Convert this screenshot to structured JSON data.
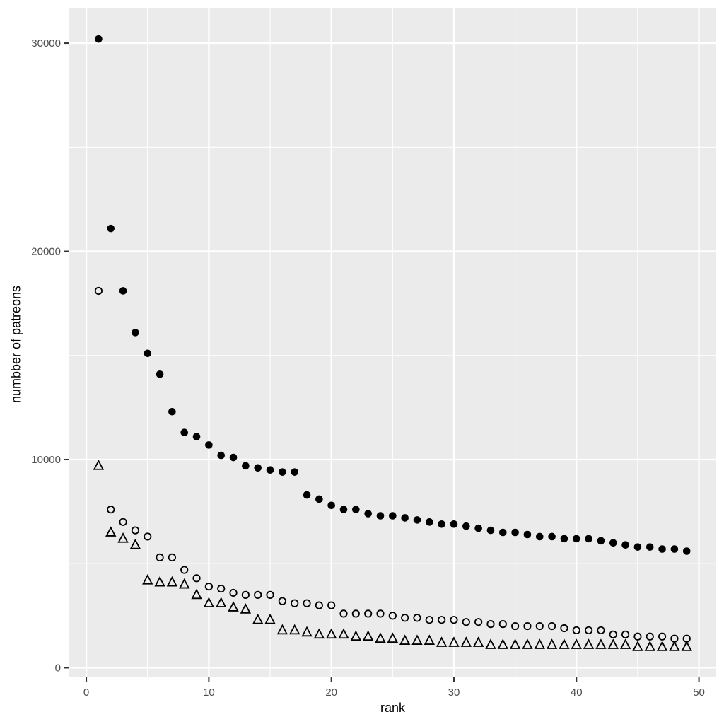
{
  "figure": {
    "background_color": "#ffffff",
    "panel_color": "#ebebeb",
    "grid_color": "#ffffff",
    "axis_tick_color": "#333333",
    "tick_label_color": "#4d4d4d",
    "axis_title_color": "#000000",
    "point_color": "#000000"
  },
  "chart_data": {
    "type": "scatter",
    "title": "",
    "xlabel": "rank",
    "ylabel": "numbber of patreons",
    "legend_position": "none",
    "grid": "white major and minor gridlines on gray panel",
    "xlim": [
      -1.39,
      51.41
    ],
    "ylim": [
      -460,
      31700
    ],
    "x_ticks": {
      "values": [
        0,
        10,
        20,
        30,
        40,
        50
      ],
      "labels": [
        "0",
        "10",
        "20",
        "30",
        "40",
        "50"
      ]
    },
    "x_minor_ticks": [
      5,
      15,
      25,
      35,
      45
    ],
    "y_ticks": {
      "values": [
        0,
        10000,
        20000,
        30000
      ],
      "labels": [
        "0",
        "10000",
        "20000",
        "30000"
      ]
    },
    "y_minor_ticks": [
      5000,
      15000,
      25000
    ],
    "x": [
      1,
      2,
      3,
      4,
      5,
      6,
      7,
      8,
      9,
      10,
      11,
      12,
      13,
      14,
      15,
      16,
      17,
      18,
      19,
      20,
      21,
      22,
      23,
      24,
      25,
      26,
      27,
      28,
      29,
      30,
      31,
      32,
      33,
      34,
      35,
      36,
      37,
      38,
      39,
      40,
      41,
      42,
      43,
      44,
      45,
      46,
      47,
      48,
      49
    ],
    "series": [
      {
        "name": "top-series-filled-circles",
        "marker": "filled-circle",
        "values": [
          30200,
          21100,
          18100,
          16100,
          15100,
          14100,
          12300,
          11300,
          11100,
          10700,
          10200,
          10100,
          9700,
          9600,
          9500,
          9400,
          9400,
          8300,
          8100,
          7800,
          7600,
          7600,
          7400,
          7300,
          7300,
          7200,
          7100,
          7000,
          6900,
          6900,
          6800,
          6700,
          6600,
          6500,
          6500,
          6400,
          6300,
          6300,
          6200,
          6200,
          6200,
          6100,
          6000,
          5900,
          5800,
          5800,
          5700,
          5700,
          5600
        ]
      },
      {
        "name": "middle-series-open-circles",
        "marker": "open-circle",
        "values": [
          18100,
          7600,
          7000,
          6600,
          6300,
          5300,
          5300,
          4700,
          4300,
          3900,
          3800,
          3600,
          3500,
          3500,
          3500,
          3200,
          3100,
          3100,
          3000,
          3000,
          2600,
          2600,
          2600,
          2600,
          2500,
          2400,
          2400,
          2300,
          2300,
          2300,
          2200,
          2200,
          2100,
          2100,
          2000,
          2000,
          2000,
          2000,
          1900,
          1800,
          1800,
          1800,
          1600,
          1600,
          1500,
          1500,
          1500,
          1400,
          1400
        ]
      },
      {
        "name": "bottom-series-open-triangles",
        "marker": "open-triangle",
        "values": [
          9700,
          6500,
          6200,
          5900,
          4200,
          4100,
          4100,
          4000,
          3500,
          3100,
          3100,
          2900,
          2800,
          2300,
          2300,
          1800,
          1800,
          1700,
          1600,
          1600,
          1600,
          1500,
          1500,
          1400,
          1400,
          1300,
          1300,
          1300,
          1200,
          1200,
          1200,
          1200,
          1100,
          1100,
          1100,
          1100,
          1100,
          1100,
          1100,
          1100,
          1100,
          1100,
          1100,
          1100,
          1000,
          1000,
          1000,
          1000,
          1000
        ]
      }
    ]
  }
}
